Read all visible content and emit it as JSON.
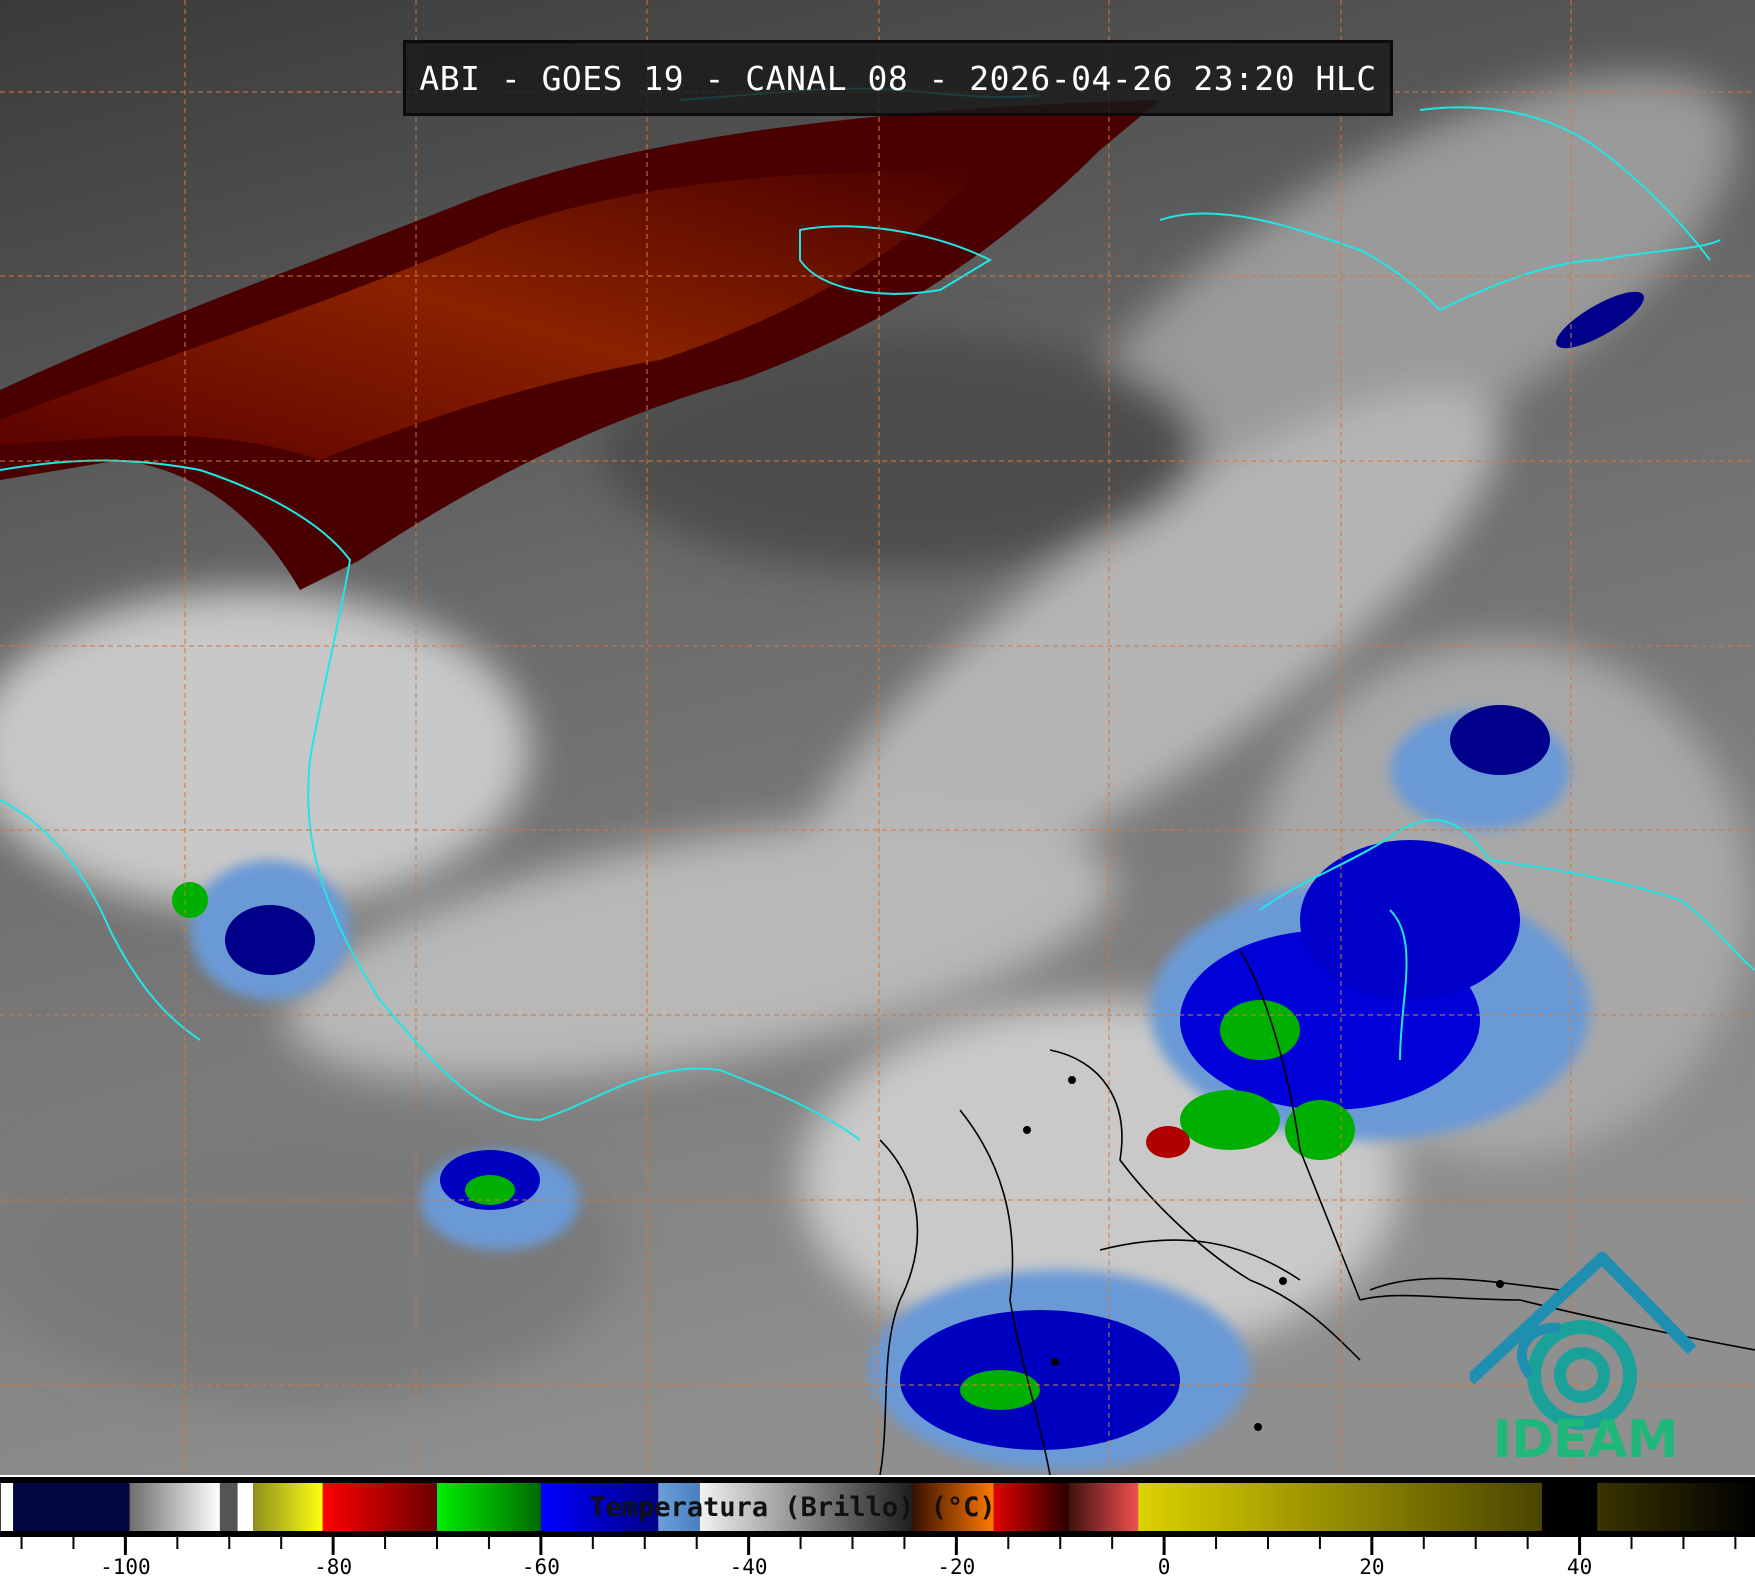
{
  "title": "ABI - GOES 19 - CANAL 08 - 2026-04-26 23:20 HLC",
  "logo": {
    "text": "IDEAM",
    "color": "#1fb87a",
    "mark_color": "#1e8fb0"
  },
  "colorbar": {
    "label": "Temperatura (Brillo) (°C)",
    "range": [
      -112,
      57
    ],
    "tick_labels": [
      "-100",
      "-80",
      "-60",
      "-40",
      "-20",
      "0",
      "20",
      "40"
    ],
    "tick_values": [
      -100,
      -80,
      -60,
      -40,
      -20,
      0,
      20,
      40
    ],
    "minor_tick_step": 5,
    "segments": [
      {
        "from": -112,
        "to": -110.8,
        "colors": [
          "#ffffff",
          "#ffffff"
        ]
      },
      {
        "from": -110.8,
        "to": -99.6,
        "colors": [
          "#000640",
          "#000640"
        ]
      },
      {
        "from": -99.6,
        "to": -90.9,
        "colors": [
          "#6e6e6e",
          "#ffffff"
        ]
      },
      {
        "from": -90.9,
        "to": -89.2,
        "colors": [
          "#555555",
          "#555555"
        ]
      },
      {
        "from": -89.2,
        "to": -87.7,
        "colors": [
          "#ffffff",
          "#ffffff"
        ]
      },
      {
        "from": -87.7,
        "to": -81,
        "colors": [
          "#8f8f1e",
          "#ffff10"
        ]
      },
      {
        "from": -81,
        "to": -70,
        "colors": [
          "#ff0000",
          "#6a0000"
        ]
      },
      {
        "from": -70,
        "to": -60,
        "colors": [
          "#00ee00",
          "#006a00"
        ]
      },
      {
        "from": -60,
        "to": -48.7,
        "colors": [
          "#0000ff",
          "#00008a"
        ]
      },
      {
        "from": -48.7,
        "to": -44.7,
        "colors": [
          "#6aa0d8",
          "#4a7fc0"
        ]
      },
      {
        "from": -44.7,
        "to": -24.2,
        "colors": [
          "#f2f2f2",
          "#1e1e1e"
        ]
      },
      {
        "from": -24.2,
        "to": -16.4,
        "colors": [
          "#3a1000",
          "#ff7a00"
        ]
      },
      {
        "from": -16.4,
        "to": -9.2,
        "colors": [
          "#e00000",
          "#2a0000"
        ]
      },
      {
        "from": -9.2,
        "to": -2.5,
        "colors": [
          "#401010",
          "#f05050"
        ]
      },
      {
        "from": -2.5,
        "to": 36.4,
        "colors": [
          "#dcd200",
          "#4a4400"
        ]
      },
      {
        "from": 36.4,
        "to": 41.7,
        "colors": [
          "#000000",
          "#000000"
        ]
      },
      {
        "from": 41.7,
        "to": 57,
        "colors": [
          "#3a3400",
          "#000000"
        ]
      }
    ]
  },
  "map": {
    "coastline_color": "#22e5e5",
    "border_color": "#000000",
    "grid_color": "#d2783c"
  }
}
